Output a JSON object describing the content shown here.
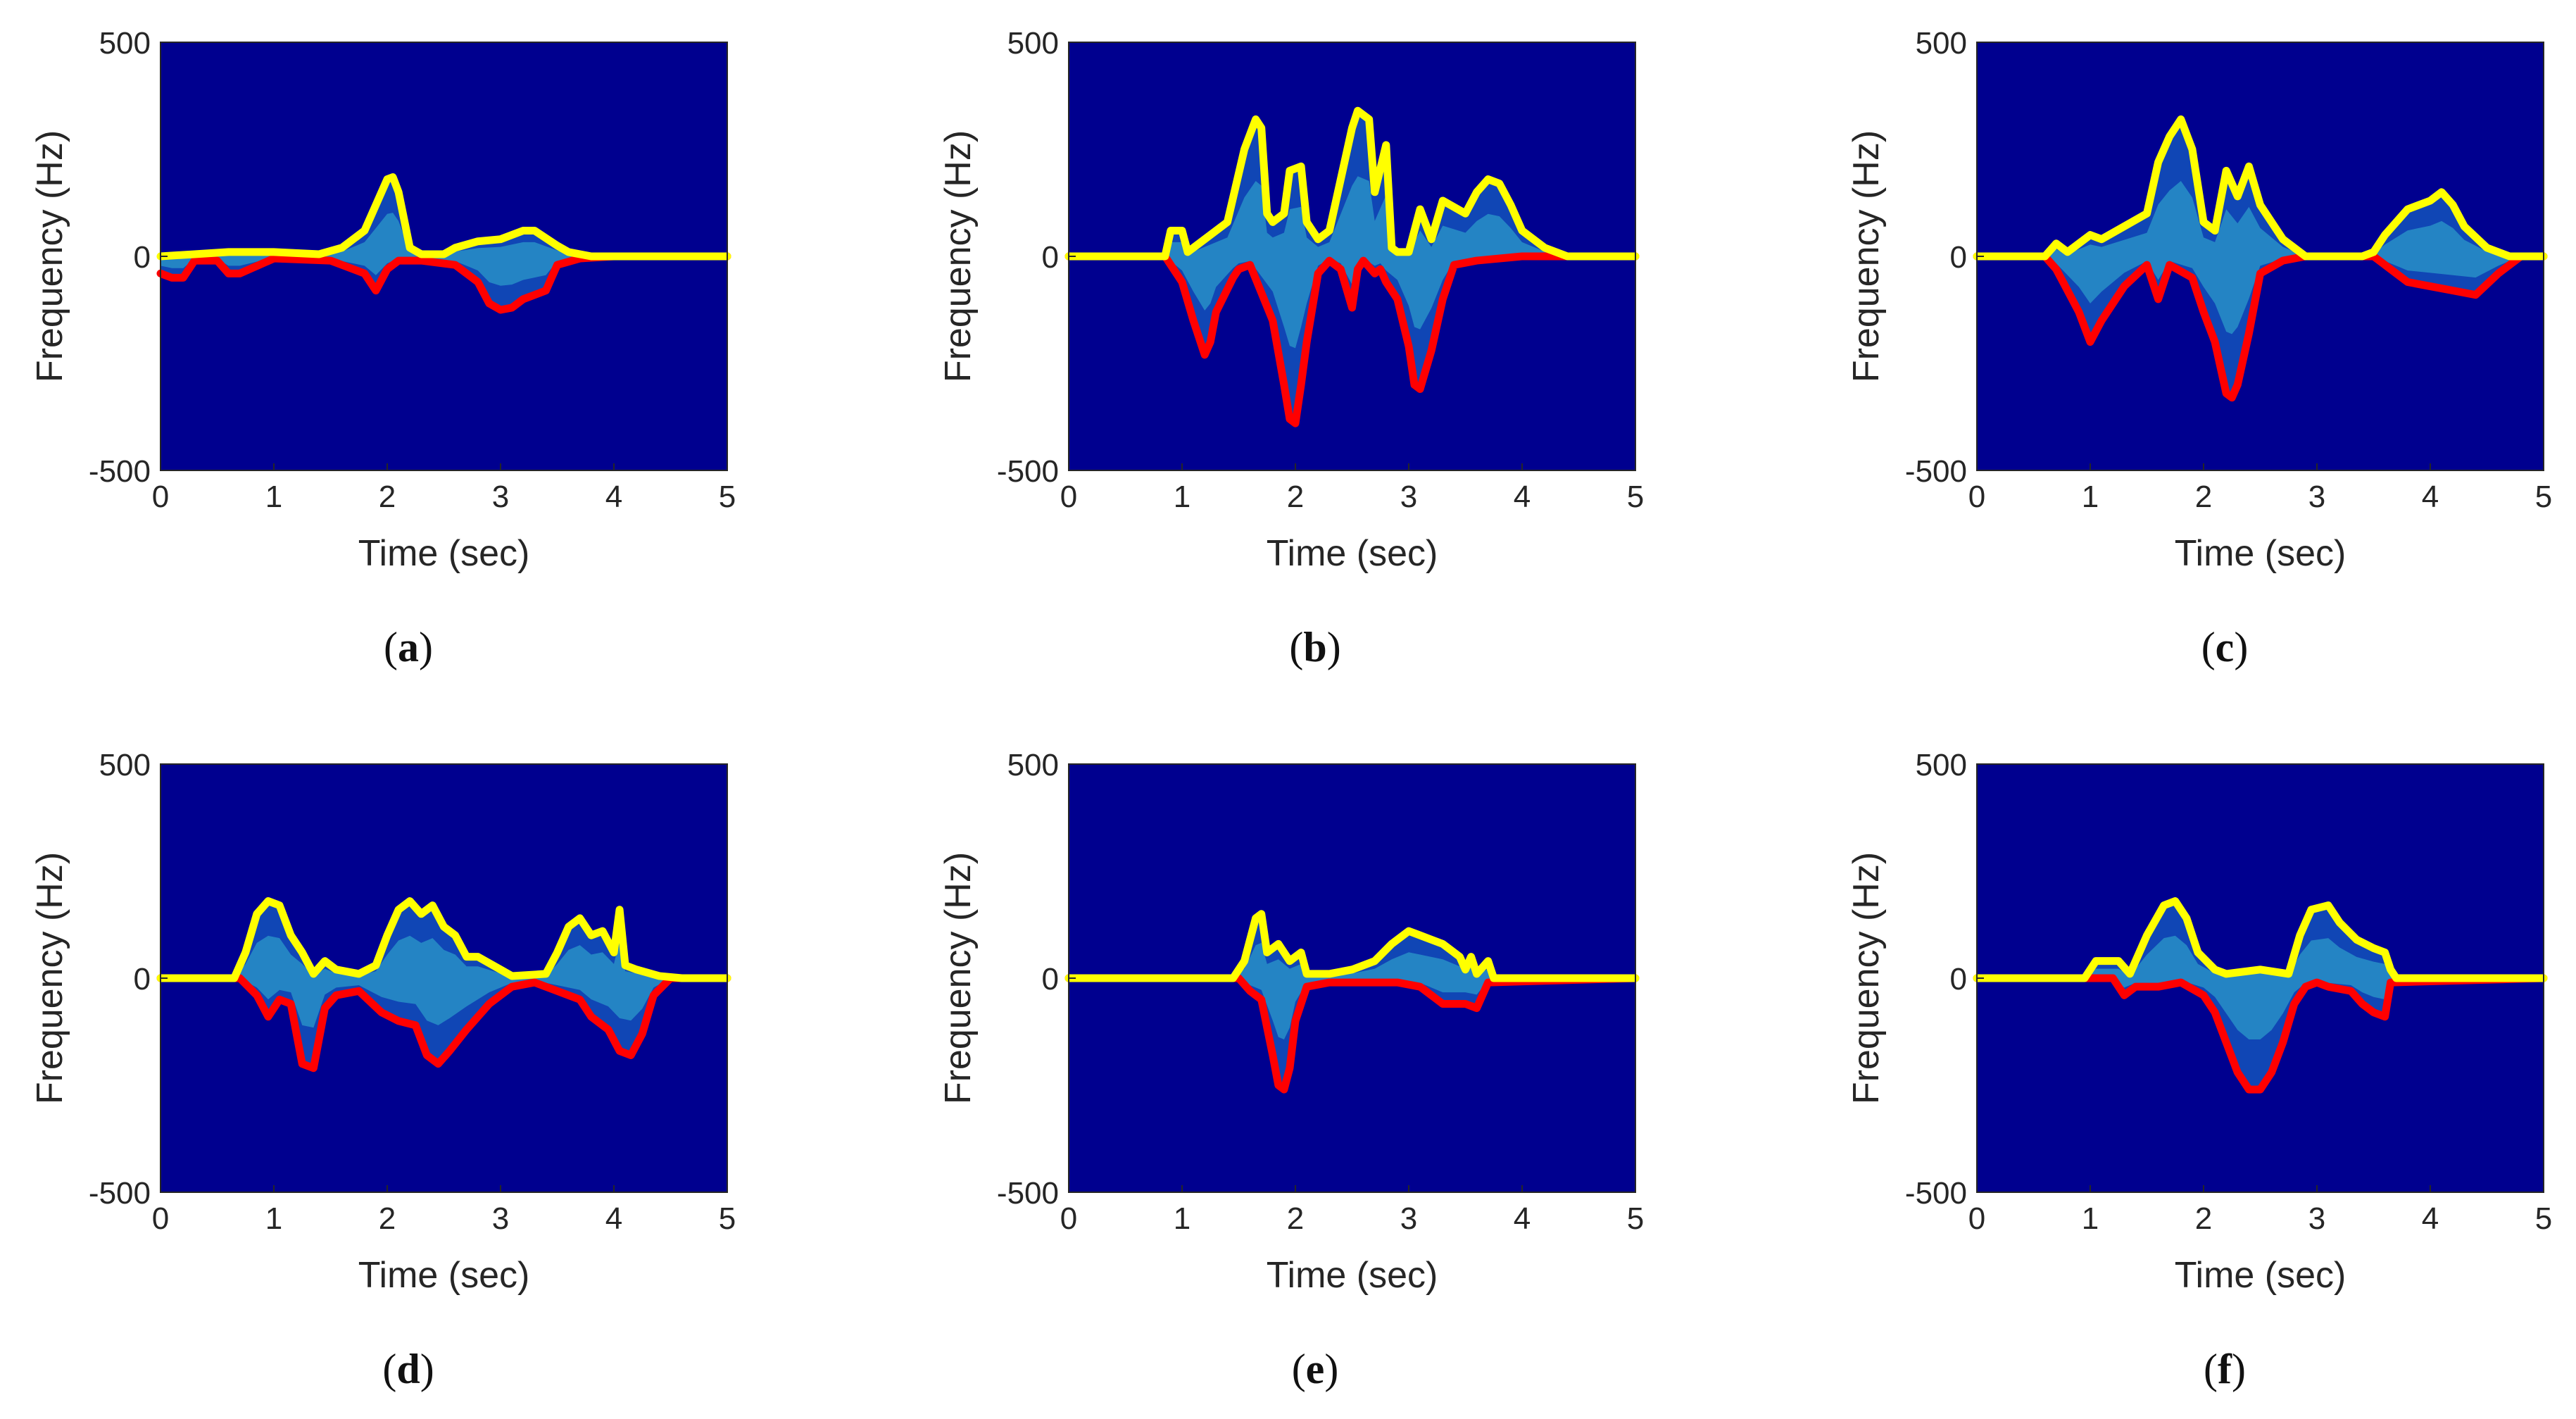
{
  "chart_data": [
    {
      "type": "area",
      "panel": "a",
      "caption_letter": "a",
      "xlabel": "Time (sec)",
      "ylabel": "Frequency (Hz)",
      "xlim": [
        0,
        5
      ],
      "ylim": [
        -500,
        500
      ],
      "xticks": [
        "0",
        "1",
        "2",
        "3",
        "4",
        "5"
      ],
      "yticks": [
        "500",
        "0",
        "-500"
      ],
      "background_color": "#00008f",
      "series": [
        {
          "name": "upper envelope",
          "color": "#ffff00",
          "x": [
            0,
            0.3,
            0.6,
            1.0,
            1.4,
            1.6,
            1.8,
            1.9,
            2.0,
            2.05,
            2.1,
            2.2,
            2.3,
            2.5,
            2.6,
            2.8,
            3.0,
            3.2,
            3.3,
            3.5,
            3.6,
            3.8,
            4.2,
            4.6,
            5.0
          ],
          "y": [
            0,
            5,
            10,
            10,
            5,
            20,
            60,
            120,
            180,
            185,
            150,
            20,
            5,
            5,
            20,
            35,
            40,
            60,
            60,
            25,
            10,
            0,
            0,
            0,
            0
          ]
        },
        {
          "name": "lower envelope",
          "color": "#ff0000",
          "x": [
            0,
            0.1,
            0.2,
            0.3,
            0.5,
            0.6,
            0.7,
            1.0,
            1.5,
            1.6,
            1.8,
            1.9,
            2.0,
            2.1,
            2.3,
            2.6,
            2.8,
            2.9,
            3.0,
            3.1,
            3.2,
            3.4,
            3.5,
            3.7,
            4.0,
            4.5,
            5.0
          ],
          "y": [
            -40,
            -50,
            -50,
            -10,
            -10,
            -40,
            -40,
            -5,
            -10,
            -20,
            -40,
            -80,
            -30,
            -10,
            -10,
            -20,
            -60,
            -110,
            -125,
            -120,
            -100,
            -80,
            -20,
            -5,
            0,
            0,
            0
          ]
        }
      ]
    },
    {
      "type": "area",
      "panel": "b",
      "caption_letter": "b",
      "xlabel": "Time (sec)",
      "ylabel": "Frequency (Hz)",
      "xlim": [
        0,
        5
      ],
      "ylim": [
        -500,
        500
      ],
      "xticks": [
        "0",
        "1",
        "2",
        "3",
        "4",
        "5"
      ],
      "yticks": [
        "500",
        "0",
        "-500"
      ],
      "background_color": "#00008f",
      "series": [
        {
          "name": "upper envelope",
          "color": "#ffff00",
          "x": [
            0,
            0.85,
            0.9,
            1.0,
            1.05,
            1.2,
            1.4,
            1.55,
            1.65,
            1.7,
            1.75,
            1.8,
            1.9,
            1.95,
            2.05,
            2.1,
            2.2,
            2.3,
            2.5,
            2.55,
            2.65,
            2.7,
            2.8,
            2.85,
            2.9,
            3.0,
            3.1,
            3.2,
            3.3,
            3.5,
            3.6,
            3.7,
            3.8,
            3.9,
            4.0,
            4.2,
            4.4,
            4.6,
            5.0
          ],
          "y": [
            0,
            0,
            60,
            60,
            10,
            40,
            80,
            250,
            320,
            300,
            100,
            80,
            100,
            200,
            210,
            80,
            40,
            60,
            300,
            340,
            320,
            150,
            260,
            20,
            10,
            10,
            110,
            40,
            130,
            100,
            150,
            180,
            170,
            120,
            60,
            20,
            0,
            0,
            0
          ]
        },
        {
          "name": "lower envelope",
          "color": "#ff0000",
          "x": [
            0,
            0.85,
            1.0,
            1.1,
            1.2,
            1.25,
            1.3,
            1.45,
            1.5,
            1.6,
            1.8,
            1.9,
            1.95,
            2.0,
            2.05,
            2.1,
            2.2,
            2.3,
            2.4,
            2.5,
            2.55,
            2.6,
            2.7,
            2.75,
            2.8,
            2.9,
            3.0,
            3.05,
            3.1,
            3.2,
            3.3,
            3.4,
            3.6,
            4.0,
            4.4,
            5.0
          ],
          "y": [
            0,
            0,
            -60,
            -150,
            -230,
            -200,
            -130,
            -50,
            -30,
            -20,
            -150,
            -300,
            -380,
            -390,
            -300,
            -200,
            -40,
            -10,
            -30,
            -120,
            -30,
            -10,
            -40,
            -30,
            -60,
            -100,
            -210,
            -300,
            -310,
            -220,
            -100,
            -20,
            -10,
            0,
            0,
            0
          ]
        }
      ]
    },
    {
      "type": "area",
      "panel": "c",
      "caption_letter": "c",
      "xlabel": "Time (sec)",
      "ylabel": "Frequency (Hz)",
      "xlim": [
        0,
        5
      ],
      "ylim": [
        -500,
        500
      ],
      "xticks": [
        "0",
        "1",
        "2",
        "3",
        "4",
        "5"
      ],
      "yticks": [
        "500",
        "0",
        "-500"
      ],
      "background_color": "#00008f",
      "series": [
        {
          "name": "upper envelope",
          "color": "#ffff00",
          "x": [
            0,
            0.6,
            0.7,
            0.8,
            1.0,
            1.1,
            1.3,
            1.5,
            1.6,
            1.7,
            1.8,
            1.9,
            2.0,
            2.1,
            2.2,
            2.3,
            2.4,
            2.5,
            2.7,
            2.9,
            3.2,
            3.4,
            3.5,
            3.6,
            3.8,
            4.0,
            4.1,
            4.2,
            4.3,
            4.5,
            4.7,
            5.0
          ],
          "y": [
            0,
            0,
            30,
            10,
            50,
            40,
            70,
            100,
            220,
            280,
            320,
            250,
            80,
            60,
            200,
            140,
            210,
            120,
            40,
            0,
            0,
            0,
            10,
            50,
            110,
            130,
            150,
            120,
            70,
            20,
            0,
            0
          ]
        },
        {
          "name": "lower envelope",
          "color": "#ff0000",
          "x": [
            0,
            0.6,
            0.7,
            0.9,
            1.0,
            1.1,
            1.3,
            1.5,
            1.6,
            1.7,
            1.9,
            2.0,
            2.1,
            2.2,
            2.25,
            2.3,
            2.4,
            2.5,
            2.7,
            2.9,
            3.2,
            3.5,
            3.6,
            3.7,
            3.8,
            4.0,
            4.2,
            4.4,
            4.6,
            4.8,
            5.0
          ],
          "y": [
            0,
            0,
            -30,
            -130,
            -200,
            -150,
            -70,
            -20,
            -100,
            -20,
            -50,
            -130,
            -200,
            -320,
            -330,
            -300,
            -180,
            -40,
            -10,
            0,
            0,
            0,
            -20,
            -40,
            -60,
            -70,
            -80,
            -90,
            -40,
            0,
            0
          ]
        }
      ]
    },
    {
      "type": "area",
      "panel": "d",
      "caption_letter": "d",
      "xlabel": "Time (sec)",
      "ylabel": "Frequency (Hz)",
      "xlim": [
        0,
        5
      ],
      "ylim": [
        -500,
        500
      ],
      "xticks": [
        "0",
        "1",
        "2",
        "3",
        "4",
        "5"
      ],
      "yticks": [
        "500",
        "0",
        "-500"
      ],
      "background_color": "#00008f",
      "series": [
        {
          "name": "upper envelope",
          "color": "#ffff00",
          "x": [
            0,
            0.65,
            0.75,
            0.85,
            0.95,
            1.05,
            1.15,
            1.25,
            1.35,
            1.45,
            1.55,
            1.75,
            1.9,
            2.0,
            2.1,
            2.2,
            2.3,
            2.4,
            2.5,
            2.6,
            2.7,
            2.8,
            3.0,
            3.1,
            3.4,
            3.5,
            3.6,
            3.7,
            3.8,
            3.9,
            4.0,
            4.05,
            4.1,
            4.2,
            4.4,
            4.6,
            5.0
          ],
          "y": [
            0,
            0,
            60,
            150,
            180,
            170,
            100,
            60,
            10,
            40,
            20,
            10,
            30,
            100,
            160,
            180,
            150,
            170,
            120,
            100,
            50,
            50,
            20,
            5,
            10,
            60,
            120,
            140,
            100,
            110,
            60,
            160,
            30,
            20,
            5,
            0,
            0
          ]
        },
        {
          "name": "lower envelope",
          "color": "#ff0000",
          "x": [
            0,
            0.7,
            0.85,
            0.95,
            1.05,
            1.15,
            1.25,
            1.35,
            1.45,
            1.55,
            1.75,
            1.95,
            2.1,
            2.25,
            2.35,
            2.45,
            2.55,
            2.7,
            2.9,
            3.1,
            3.3,
            3.5,
            3.6,
            3.7,
            3.8,
            3.95,
            4.05,
            4.15,
            4.25,
            4.35,
            4.5,
            5.0
          ],
          "y": [
            0,
            0,
            -40,
            -90,
            -50,
            -60,
            -200,
            -210,
            -70,
            -40,
            -30,
            -80,
            -100,
            -110,
            -180,
            -200,
            -170,
            -120,
            -60,
            -20,
            -10,
            -30,
            -40,
            -50,
            -90,
            -120,
            -170,
            -180,
            -130,
            -40,
            0,
            0
          ]
        }
      ]
    },
    {
      "type": "area",
      "panel": "e",
      "caption_letter": "e",
      "xlabel": "Time (sec)",
      "ylabel": "Frequency (Hz)",
      "xlim": [
        0,
        5
      ],
      "ylim": [
        -500,
        500
      ],
      "xticks": [
        "0",
        "1",
        "2",
        "3",
        "4",
        "5"
      ],
      "yticks": [
        "500",
        "0",
        "-500"
      ],
      "background_color": "#00008f",
      "series": [
        {
          "name": "upper envelope",
          "color": "#ffff00",
          "x": [
            0,
            1.45,
            1.55,
            1.65,
            1.7,
            1.75,
            1.85,
            1.95,
            2.05,
            2.1,
            2.3,
            2.5,
            2.7,
            2.85,
            3.0,
            3.1,
            3.3,
            3.45,
            3.5,
            3.55,
            3.6,
            3.7,
            3.75,
            5.0
          ],
          "y": [
            0,
            0,
            40,
            140,
            150,
            60,
            80,
            40,
            60,
            10,
            10,
            20,
            40,
            80,
            110,
            100,
            80,
            50,
            20,
            50,
            10,
            40,
            0,
            0
          ]
        },
        {
          "name": "lower envelope",
          "color": "#ff0000",
          "x": [
            0,
            1.5,
            1.6,
            1.7,
            1.8,
            1.85,
            1.9,
            1.95,
            2.0,
            2.1,
            2.3,
            2.5,
            2.7,
            2.9,
            3.1,
            3.2,
            3.3,
            3.4,
            3.5,
            3.6,
            3.7,
            5.0
          ],
          "y": [
            0,
            0,
            -30,
            -50,
            -180,
            -250,
            -260,
            -210,
            -100,
            -20,
            -10,
            -10,
            -10,
            -10,
            -20,
            -40,
            -60,
            -60,
            -60,
            -70,
            -10,
            0
          ]
        }
      ]
    },
    {
      "type": "area",
      "panel": "f",
      "caption_letter": "f",
      "xlabel": "Time (sec)",
      "ylabel": "Frequency (Hz)",
      "xlim": [
        0,
        5
      ],
      "ylim": [
        -500,
        500
      ],
      "xticks": [
        "0",
        "1",
        "2",
        "3",
        "4",
        "5"
      ],
      "yticks": [
        "500",
        "0",
        "-500"
      ],
      "background_color": "#00008f",
      "series": [
        {
          "name": "upper envelope",
          "color": "#ffff00",
          "x": [
            0,
            0.95,
            1.05,
            1.25,
            1.35,
            1.5,
            1.65,
            1.75,
            1.85,
            1.95,
            2.1,
            2.2,
            2.5,
            2.75,
            2.85,
            2.95,
            3.1,
            3.2,
            3.35,
            3.5,
            3.6,
            3.65,
            3.7,
            5.0
          ],
          "y": [
            0,
            0,
            40,
            40,
            10,
            100,
            170,
            180,
            140,
            60,
            20,
            10,
            20,
            10,
            100,
            160,
            170,
            130,
            90,
            70,
            60,
            20,
            0,
            0
          ]
        },
        {
          "name": "lower envelope",
          "color": "#ff0000",
          "x": [
            0,
            1.2,
            1.3,
            1.4,
            1.6,
            1.8,
            2.0,
            2.1,
            2.2,
            2.3,
            2.4,
            2.5,
            2.6,
            2.7,
            2.8,
            2.9,
            3.0,
            3.1,
            3.3,
            3.4,
            3.5,
            3.6,
            3.65,
            5.0
          ],
          "y": [
            0,
            0,
            -40,
            -20,
            -20,
            -10,
            -40,
            -80,
            -150,
            -220,
            -260,
            -260,
            -220,
            -150,
            -60,
            -20,
            -10,
            -20,
            -30,
            -60,
            -80,
            -90,
            -10,
            0
          ]
        }
      ]
    }
  ]
}
